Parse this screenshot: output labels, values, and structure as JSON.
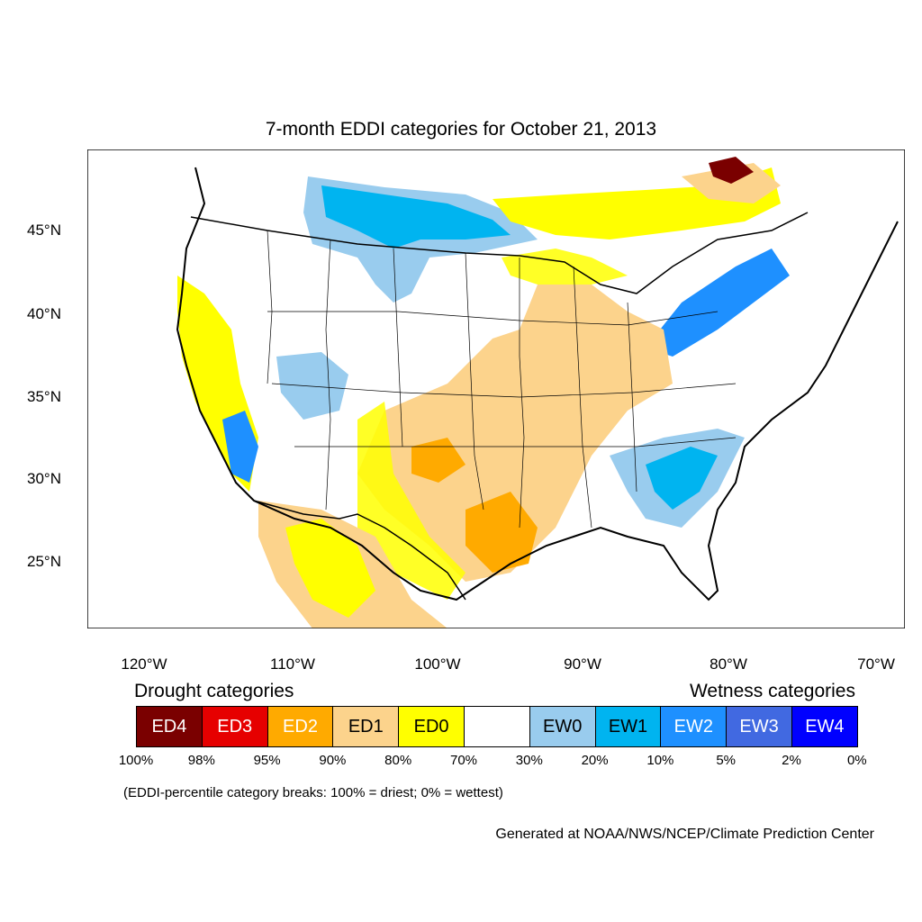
{
  "title": "7-month EDDI categories for October 21, 2013",
  "lat_labels": [
    "45°N",
    "40°N",
    "35°N",
    "30°N",
    "25°N"
  ],
  "lon_labels": [
    "120°W",
    "110°W",
    "100°W",
    "90°W",
    "80°W",
    "70°W"
  ],
  "legend": {
    "drought_heading": "Drought categories",
    "wetness_heading": "Wetness categories",
    "categories": [
      {
        "label": "ED4",
        "color": "#7a0000",
        "text_color": "#ffffff"
      },
      {
        "label": "ED3",
        "color": "#e60000",
        "text_color": "#ffffff"
      },
      {
        "label": "ED2",
        "color": "#ffaa00",
        "text_color": "#ffffff"
      },
      {
        "label": "ED1",
        "color": "#fcd38c",
        "text_color": "#000000"
      },
      {
        "label": "ED0",
        "color": "#ffff00",
        "text_color": "#000000"
      },
      {
        "label": "",
        "color": "#ffffff",
        "text_color": "#000000"
      },
      {
        "label": "EW0",
        "color": "#99ccee",
        "text_color": "#000000"
      },
      {
        "label": "EW1",
        "color": "#00b4f0",
        "text_color": "#000000"
      },
      {
        "label": "EW2",
        "color": "#1e90ff",
        "text_color": "#ffffff"
      },
      {
        "label": "EW3",
        "color": "#4169e1",
        "text_color": "#ffffff"
      },
      {
        "label": "EW4",
        "color": "#0000ff",
        "text_color": "#ffffff"
      }
    ],
    "breaks": [
      "100%",
      "98%",
      "95%",
      "90%",
      "80%",
      "70%",
      "30%",
      "20%",
      "10%",
      "5%",
      "2%",
      "0%"
    ],
    "note": "(EDDI-percentile category breaks: 100% = driest; 0% = wettest)"
  },
  "credit": "Generated at NOAA/NWS/NCEP/Climate Prediction Center"
}
